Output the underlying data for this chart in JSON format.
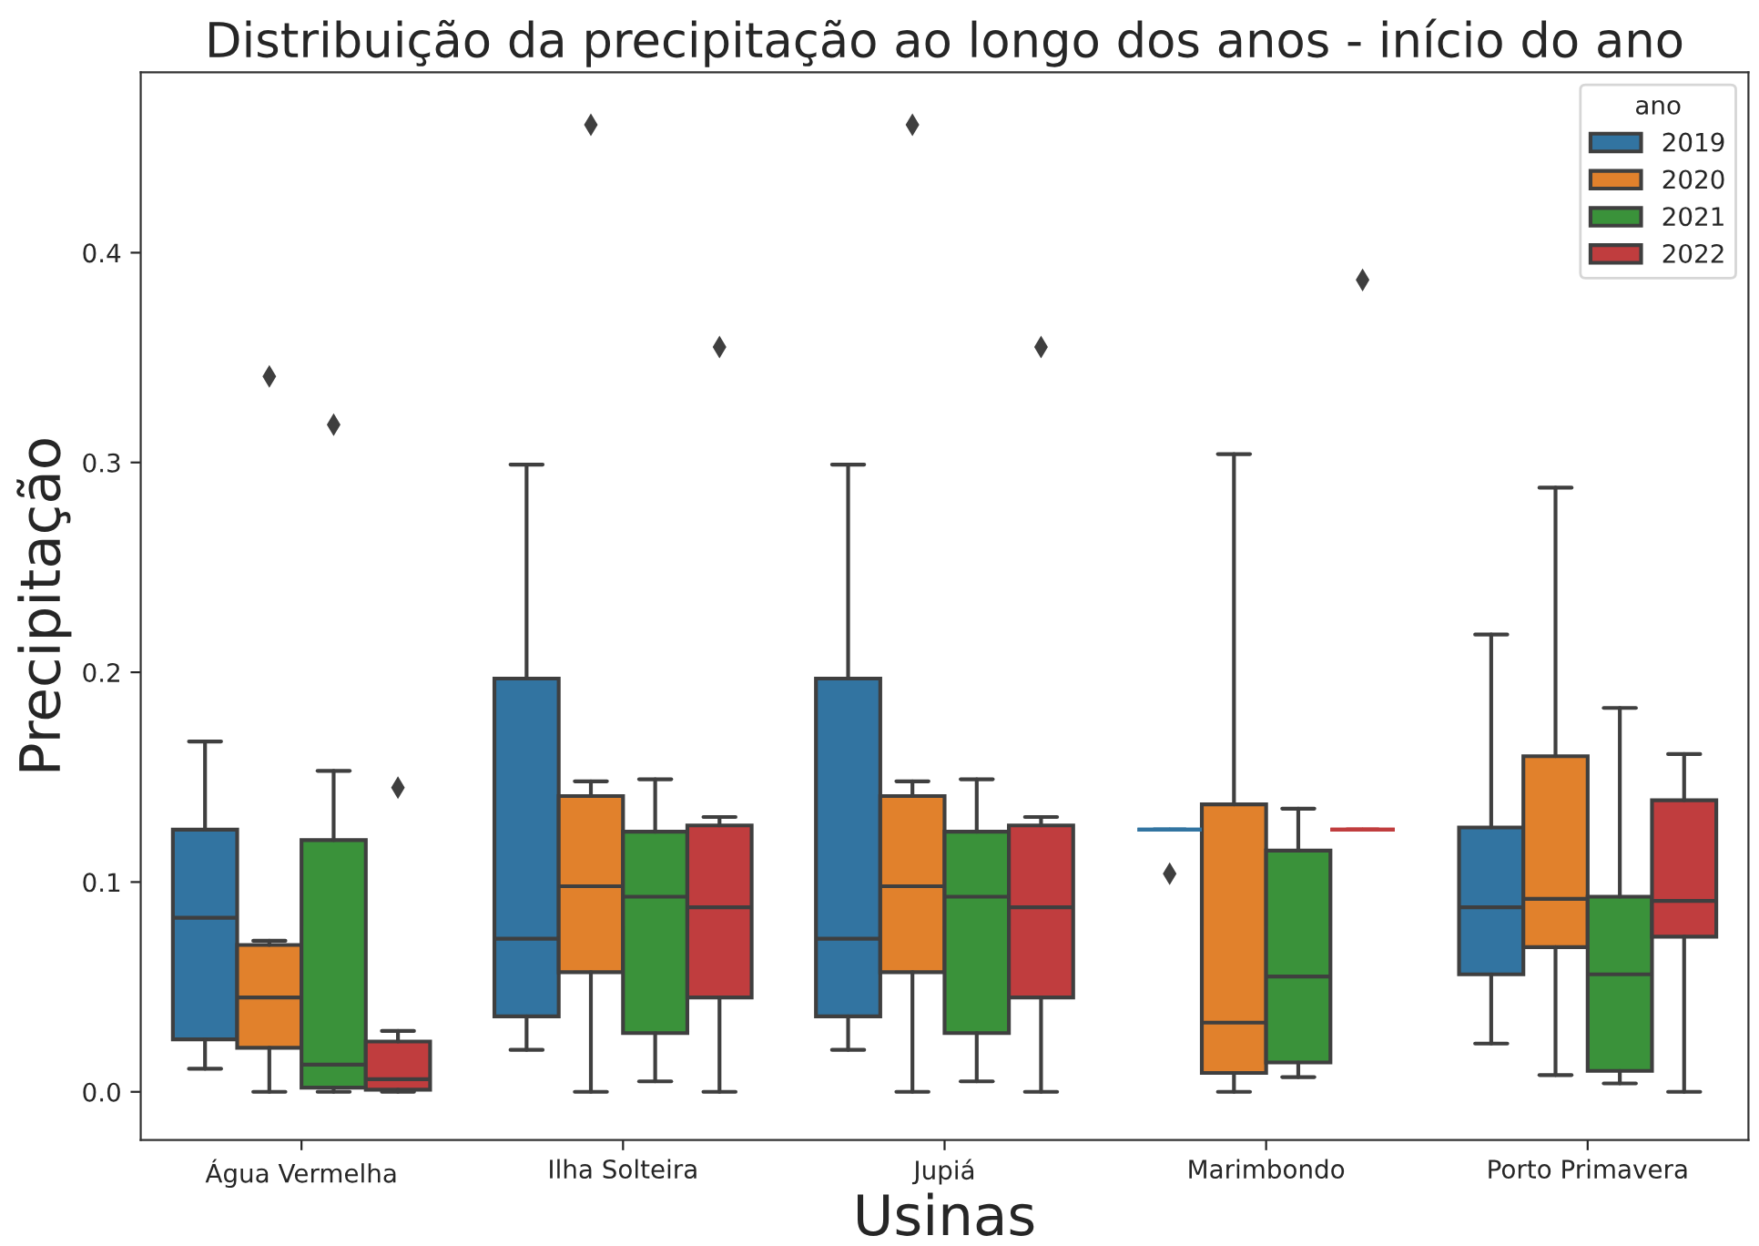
{
  "chart_data": {
    "type": "box",
    "title": "Distribuição da precipitação ao longo dos anos - início do ano",
    "xlabel": "Usinas",
    "ylabel": "Precipitação",
    "legend_title": "ano",
    "legend": "top right",
    "grid": false,
    "categories": [
      "Água Vermelha",
      "Ilha Solteira",
      "Jupiá",
      "Marimbondo",
      "Porto Primavera"
    ],
    "ylim": [
      -0.023,
      0.486
    ],
    "yticks": [
      {
        "value": 0,
        "label": "0.0"
      },
      0.1,
      0.2,
      0.3,
      0.4
    ],
    "series": [
      {
        "name": "2019",
        "color": "#3274a1",
        "boxes": [
          {
            "low": 0.011,
            "q1": 0.025,
            "median": 0.083,
            "q3": 0.125,
            "high": 0.167
          },
          {
            "low": 0.02,
            "q1": 0.036,
            "median": 0.073,
            "q3": 0.197,
            "high": 0.299
          },
          {
            "low": 0.02,
            "q1": 0.036,
            "median": 0.073,
            "q3": 0.197,
            "high": 0.299
          },
          {
            "low": 0.125,
            "q1": 0.125,
            "median": 0.125,
            "q3": 0.125,
            "high": 0.125,
            "outliers": [
              0.104
            ]
          },
          {
            "low": 0.023,
            "q1": 0.056,
            "median": 0.088,
            "q3": 0.126,
            "high": 0.218
          }
        ]
      },
      {
        "name": "2020",
        "color": "#e1812c",
        "boxes": [
          {
            "low": 0.0,
            "q1": 0.021,
            "median": 0.045,
            "q3": 0.07,
            "high": 0.072,
            "outliers": [
              0.341
            ]
          },
          {
            "low": 0.0,
            "q1": 0.057,
            "median": 0.098,
            "q3": 0.141,
            "high": 0.148,
            "outliers": [
              0.461
            ]
          },
          {
            "low": 0.0,
            "q1": 0.057,
            "median": 0.098,
            "q3": 0.141,
            "high": 0.148,
            "outliers": [
              0.461
            ]
          },
          {
            "low": 0.0,
            "q1": 0.009,
            "median": 0.033,
            "q3": 0.137,
            "high": 0.304
          },
          {
            "low": 0.008,
            "q1": 0.069,
            "median": 0.092,
            "q3": 0.16,
            "high": 0.288
          }
        ]
      },
      {
        "name": "2021",
        "color": "#3a923a",
        "boxes": [
          {
            "low": 0.0,
            "q1": 0.002,
            "median": 0.013,
            "q3": 0.12,
            "high": 0.153,
            "outliers": [
              0.318
            ]
          },
          {
            "low": 0.005,
            "q1": 0.028,
            "median": 0.093,
            "q3": 0.124,
            "high": 0.149
          },
          {
            "low": 0.005,
            "q1": 0.028,
            "median": 0.093,
            "q3": 0.124,
            "high": 0.149
          },
          {
            "low": 0.007,
            "q1": 0.014,
            "median": 0.055,
            "q3": 0.115,
            "high": 0.135
          },
          {
            "low": 0.004,
            "q1": 0.01,
            "median": 0.056,
            "q3": 0.093,
            "high": 0.183
          }
        ]
      },
      {
        "name": "2022",
        "color": "#c03d3e",
        "boxes": [
          {
            "low": 0.0,
            "q1": 0.001,
            "median": 0.006,
            "q3": 0.024,
            "high": 0.029,
            "outliers": [
              0.145
            ]
          },
          {
            "low": 0.0,
            "q1": 0.045,
            "median": 0.088,
            "q3": 0.127,
            "high": 0.131,
            "outliers": [
              0.355
            ]
          },
          {
            "low": 0.0,
            "q1": 0.045,
            "median": 0.088,
            "q3": 0.127,
            "high": 0.131,
            "outliers": [
              0.355
            ]
          },
          {
            "low": 0.125,
            "q1": 0.125,
            "median": 0.125,
            "q3": 0.125,
            "high": 0.125,
            "outliers": [
              0.387
            ]
          },
          {
            "low": 0.0,
            "q1": 0.074,
            "median": 0.091,
            "q3": 0.139,
            "high": 0.161
          }
        ]
      }
    ]
  }
}
